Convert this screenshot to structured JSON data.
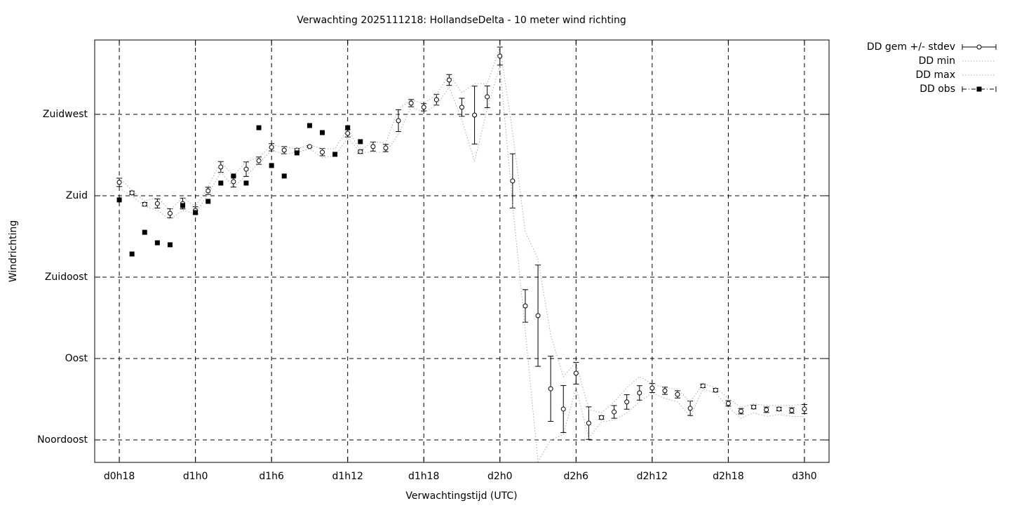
{
  "chart_data": {
    "type": "errorbar",
    "title": "Verwachting 2025111218: HollandseDelta - 10 meter wind richting",
    "x_label": "Verwachtingstijd (UTC)",
    "y_label": "Windrichting",
    "x": [
      18,
      19,
      20,
      21,
      22,
      23,
      24,
      25,
      26,
      27,
      28,
      29,
      30,
      31,
      32,
      33,
      34,
      35,
      36,
      37,
      38,
      39,
      40,
      41,
      42,
      43,
      44,
      45,
      46,
      47,
      48,
      49,
      50,
      51,
      52,
      53,
      54,
      55,
      56,
      57,
      58,
      59,
      60,
      61,
      62,
      63,
      64,
      65,
      66,
      67,
      68,
      69,
      70,
      71,
      72
    ],
    "xlim": [
      16.06,
      73.94
    ],
    "xticks": [
      {
        "value": 18,
        "label": "d0h18"
      },
      {
        "value": 24,
        "label": "d1h0"
      },
      {
        "value": 30,
        "label": "d1h6"
      },
      {
        "value": 36,
        "label": "d1h12"
      },
      {
        "value": 42,
        "label": "d1h18"
      },
      {
        "value": 48,
        "label": "d2h0"
      },
      {
        "value": 54,
        "label": "d2h6"
      },
      {
        "value": 60,
        "label": "d2h12"
      },
      {
        "value": 66,
        "label": "d2h18"
      },
      {
        "value": 72,
        "label": "d3h0"
      }
    ],
    "ylim": [
      32.6,
      266.1
    ],
    "yticks": [
      {
        "value": 45,
        "label": "Noordoost"
      },
      {
        "value": 90,
        "label": "Oost"
      },
      {
        "value": 135,
        "label": "Zuidoost"
      },
      {
        "value": 180,
        "label": "Zuid"
      },
      {
        "value": 225,
        "label": "Zuidwest"
      }
    ],
    "grid": true,
    "legend": "outside-top-right",
    "series": [
      {
        "name": "DD gem +/- stdev",
        "color": "#000000",
        "values": [
          187.4,
          181.6,
          175.3,
          175.7,
          170.3,
          175.7,
          171.9,
          182.7,
          195.9,
          187.8,
          194.7,
          199.4,
          206.8,
          205.2,
          205.2,
          207.2,
          204.1,
          null,
          214.5,
          204.4,
          207.2,
          206.4,
          221.5,
          231.2,
          228.9,
          233.1,
          244.0,
          228.9,
          224.6,
          234.7,
          257.2,
          188.2,
          119.1,
          113.7,
          73.3,
          62.1,
          81.9,
          54.3,
          57.4,
          60.5,
          66.0,
          71.0,
          73.7,
          72.2,
          70.2,
          62.5,
          74.9,
          72.5,
          65.2,
          60.9,
          63.2,
          61.7,
          62.1,
          61.3,
          62.1
        ],
        "errors": [
          2.3,
          1,
          1,
          2.5,
          2.5,
          3,
          2,
          2,
          3,
          3,
          4,
          2,
          2,
          2,
          1,
          0.5,
          2,
          null,
          2,
          1,
          2.5,
          2,
          6,
          2,
          2,
          3,
          3,
          5,
          16,
          6,
          5,
          15,
          9,
          28,
          18,
          13,
          6,
          9,
          1,
          3.5,
          4,
          4,
          2.5,
          2,
          2,
          4,
          1,
          1,
          1.5,
          1.5,
          1,
          1.5,
          1,
          1.5,
          2.5
        ]
      },
      {
        "name": "DD min",
        "color": "#aaaaaa",
        "values": [
          184,
          180,
          174,
          172,
          167,
          172,
          170,
          181,
          193,
          185,
          191,
          198,
          205,
          203,
          204,
          206,
          201,
          202,
          212,
          204,
          204,
          204,
          214,
          229,
          226,
          230,
          240,
          222,
          199,
          228,
          252,
          175,
          105,
          33,
          45,
          48,
          74,
          46,
          55,
          56,
          60,
          66,
          71,
          68,
          66,
          58,
          73,
          71,
          63,
          57,
          60,
          58,
          59,
          58,
          58
        ]
      },
      {
        "name": "DD max",
        "color": "#aaaaaa",
        "values": [
          190,
          183,
          177,
          179,
          172,
          179,
          174,
          185,
          199,
          191,
          199,
          201,
          208,
          207,
          206,
          208,
          206,
          206,
          217,
          205,
          210,
          209,
          228,
          233,
          231,
          236,
          247,
          237,
          242,
          242,
          262,
          215,
          160,
          145,
          103,
          80,
          88,
          62,
          60,
          66,
          74,
          80,
          76,
          74,
          73,
          66,
          76,
          74,
          68,
          63,
          65,
          64,
          64,
          64,
          65
        ]
      },
      {
        "name": "DD obs",
        "color": "#000000",
        "values": [
          177.7,
          147.8,
          159.8,
          154.0,
          152.9,
          174.6,
          170.7,
          176.9,
          187.0,
          190.9,
          187.0,
          217.6,
          196.7,
          190.9,
          203.7,
          218.8,
          214.9,
          202.9,
          217.6,
          209.9,
          null,
          null,
          null,
          null,
          null,
          null,
          null,
          null,
          null,
          null,
          null,
          null,
          null,
          null,
          null,
          null,
          null,
          null,
          null,
          null,
          null,
          null,
          null,
          null,
          null,
          null,
          null,
          null,
          null,
          null,
          null,
          null,
          null,
          null,
          null
        ]
      }
    ]
  }
}
